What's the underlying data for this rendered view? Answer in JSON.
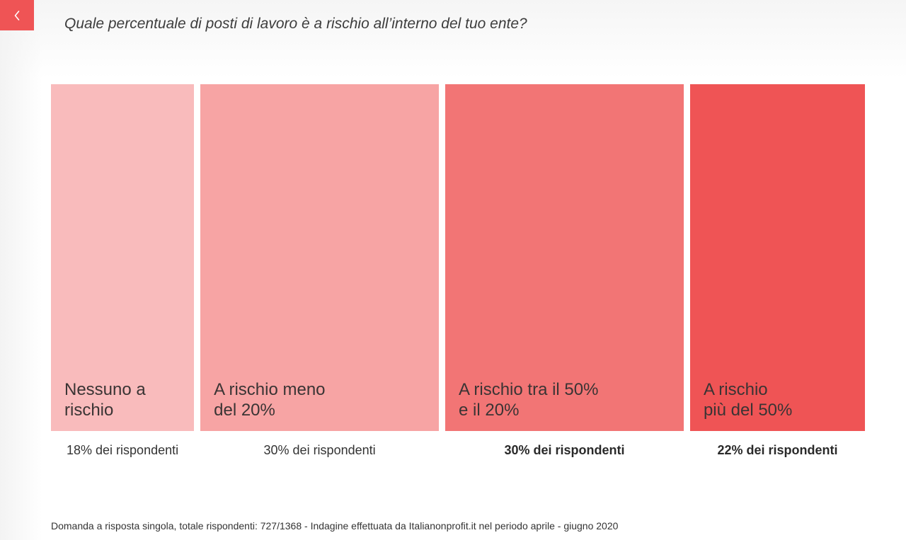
{
  "header": {
    "back_icon": "chevron-left-icon",
    "question": "Quale percentuale di posti di lavoro è a rischio all’interno del tuo ente?"
  },
  "chart_data": {
    "type": "bar",
    "title": "Quale percentuale di posti di lavoro è a rischio all’interno del tuo ente?",
    "unit": "% dei rispondenti",
    "categories": [
      {
        "label_lines": [
          "Nessuno a",
          "rischio"
        ],
        "value": 18,
        "share_label": "18% dei rispondenti",
        "color": "#f9bbbc",
        "bold": false
      },
      {
        "label_lines": [
          "A rischio meno",
          "del 20%"
        ],
        "value": 30,
        "share_label": "30% dei rispondenti",
        "color": "#f7a4a4",
        "bold": false
      },
      {
        "label_lines": [
          "A rischio tra il 50%",
          "e il 20%"
        ],
        "value": 30,
        "share_label": "30% dei rispondenti",
        "color": "#f27575",
        "bold": true
      },
      {
        "label_lines": [
          "A rischio",
          "più del 50%"
        ],
        "value": 22,
        "share_label": "22% dei rispondenti",
        "color": "#ef5455",
        "bold": true
      }
    ]
  },
  "footer": {
    "note": "Domanda a risposta singola, totale rispondenti: 727/1368 - Indagine effettuata da Italianonprofit.it nel periodo aprile - giugno 2020"
  },
  "colors": {
    "accent": "#ef5455"
  }
}
